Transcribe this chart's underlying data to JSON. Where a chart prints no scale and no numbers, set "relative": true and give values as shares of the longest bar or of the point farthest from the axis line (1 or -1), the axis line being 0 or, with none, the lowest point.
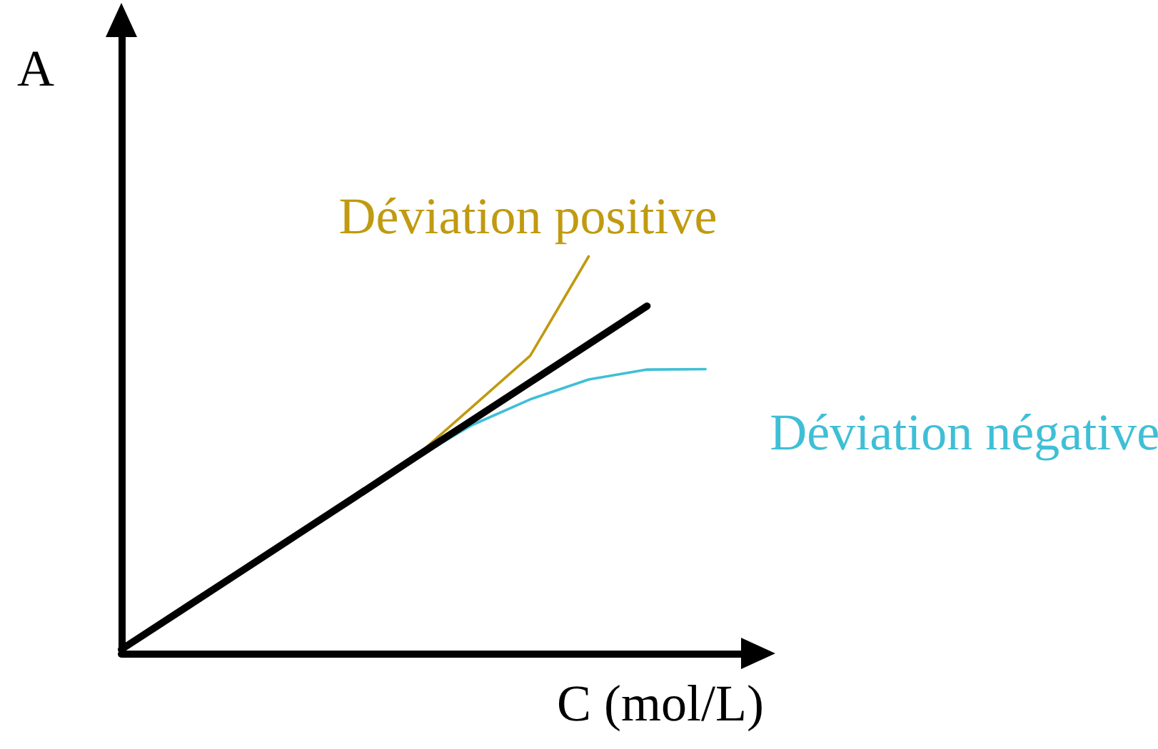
{
  "chart_data": {
    "type": "line",
    "relative": true,
    "xlabel": "C (mol/L)",
    "ylabel": "A",
    "grid": false,
    "legend": false,
    "marker": "none",
    "line_style": "solid",
    "categories": [
      null,
      null,
      null,
      null,
      null,
      null,
      null,
      null,
      null,
      null,
      null,
      null
    ],
    "series": [
      {
        "color": "#000000",
        "values": [
          0.01,
          0.106,
          0.202,
          0.298,
          0.394,
          0.491,
          0.587,
          0.683,
          0.779,
          0.875,
          null,
          null
        ]
      },
      {
        "name": "Déviation positive",
        "color": "#c09a10",
        "values": [
          null,
          null,
          null,
          null,
          null,
          0.491,
          0.62,
          0.75,
          1.0,
          null,
          null,
          null
        ]
      },
      {
        "name": "Déviation négative",
        "color": "#3fbfd6",
        "values": [
          null,
          null,
          null,
          null,
          null,
          0.489,
          0.575,
          0.64,
          0.69,
          0.715,
          0.716,
          null
        ]
      }
    ]
  }
}
